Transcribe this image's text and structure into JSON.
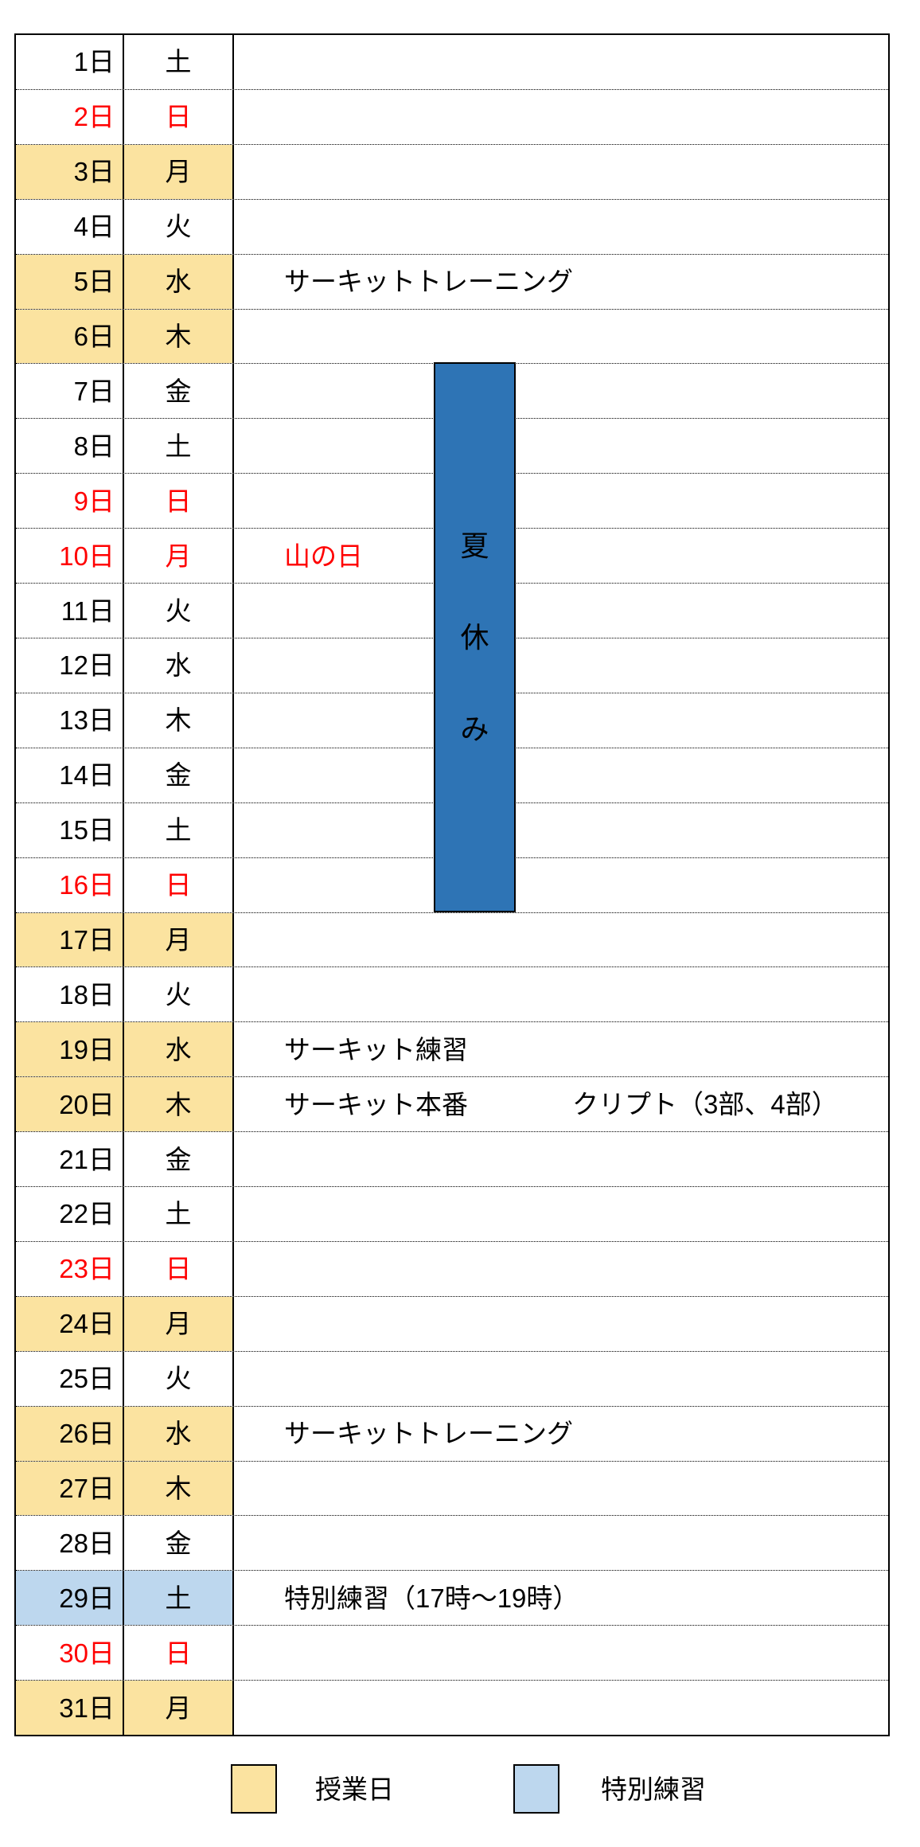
{
  "colors": {
    "class_day": "#FBE3A0",
    "special": "#BDD7EE",
    "banner": "#2E74B5",
    "red": "#FF0000"
  },
  "banner": {
    "chars": [
      "夏",
      "休",
      "み"
    ]
  },
  "legend": {
    "class_day_label": "授業日",
    "special_practice_label": "特別練習"
  },
  "table": {
    "days": [
      {
        "day": "1日",
        "weekday": "土",
        "bg": "none",
        "red": false,
        "event": "",
        "event2": "",
        "event_red": false
      },
      {
        "day": "2日",
        "weekday": "日",
        "bg": "none",
        "red": true,
        "event": "",
        "event2": "",
        "event_red": false
      },
      {
        "day": "3日",
        "weekday": "月",
        "bg": "class",
        "red": false,
        "event": "",
        "event2": "",
        "event_red": false
      },
      {
        "day": "4日",
        "weekday": "火",
        "bg": "none",
        "red": false,
        "event": "",
        "event2": "",
        "event_red": false
      },
      {
        "day": "5日",
        "weekday": "水",
        "bg": "class",
        "red": false,
        "event": "サーキットトレーニング",
        "event2": "",
        "event_red": false
      },
      {
        "day": "6日",
        "weekday": "木",
        "bg": "class",
        "red": false,
        "event": "",
        "event2": "",
        "event_red": false
      },
      {
        "day": "7日",
        "weekday": "金",
        "bg": "none",
        "red": false,
        "event": "",
        "event2": "",
        "event_red": false
      },
      {
        "day": "8日",
        "weekday": "土",
        "bg": "none",
        "red": false,
        "event": "",
        "event2": "",
        "event_red": false
      },
      {
        "day": "9日",
        "weekday": "日",
        "bg": "none",
        "red": true,
        "event": "",
        "event2": "",
        "event_red": false
      },
      {
        "day": "10日",
        "weekday": "月",
        "bg": "none",
        "red": true,
        "event": "山の日",
        "event2": "",
        "event_red": true
      },
      {
        "day": "11日",
        "weekday": "火",
        "bg": "none",
        "red": false,
        "event": "",
        "event2": "",
        "event_red": false
      },
      {
        "day": "12日",
        "weekday": "水",
        "bg": "none",
        "red": false,
        "event": "",
        "event2": "",
        "event_red": false
      },
      {
        "day": "13日",
        "weekday": "木",
        "bg": "none",
        "red": false,
        "event": "",
        "event2": "",
        "event_red": false
      },
      {
        "day": "14日",
        "weekday": "金",
        "bg": "none",
        "red": false,
        "event": "",
        "event2": "",
        "event_red": false
      },
      {
        "day": "15日",
        "weekday": "土",
        "bg": "none",
        "red": false,
        "event": "",
        "event2": "",
        "event_red": false
      },
      {
        "day": "16日",
        "weekday": "日",
        "bg": "none",
        "red": true,
        "event": "",
        "event2": "",
        "event_red": false
      },
      {
        "day": "17日",
        "weekday": "月",
        "bg": "class",
        "red": false,
        "event": "",
        "event2": "",
        "event_red": false
      },
      {
        "day": "18日",
        "weekday": "火",
        "bg": "none",
        "red": false,
        "event": "",
        "event2": "",
        "event_red": false
      },
      {
        "day": "19日",
        "weekday": "水",
        "bg": "class",
        "red": false,
        "event": "サーキット練習",
        "event2": "",
        "event_red": false
      },
      {
        "day": "20日",
        "weekday": "木",
        "bg": "class",
        "red": false,
        "event": "サーキット本番",
        "event2": "クリプト（3部、4部）",
        "event_red": false
      },
      {
        "day": "21日",
        "weekday": "金",
        "bg": "none",
        "red": false,
        "event": "",
        "event2": "",
        "event_red": false
      },
      {
        "day": "22日",
        "weekday": "土",
        "bg": "none",
        "red": false,
        "event": "",
        "event2": "",
        "event_red": false
      },
      {
        "day": "23日",
        "weekday": "日",
        "bg": "none",
        "red": true,
        "event": "",
        "event2": "",
        "event_red": false
      },
      {
        "day": "24日",
        "weekday": "月",
        "bg": "class",
        "red": false,
        "event": "",
        "event2": "",
        "event_red": false
      },
      {
        "day": "25日",
        "weekday": "火",
        "bg": "none",
        "red": false,
        "event": "",
        "event2": "",
        "event_red": false
      },
      {
        "day": "26日",
        "weekday": "水",
        "bg": "class",
        "red": false,
        "event": "サーキットトレーニング",
        "event2": "",
        "event_red": false
      },
      {
        "day": "27日",
        "weekday": "木",
        "bg": "class",
        "red": false,
        "event": "",
        "event2": "",
        "event_red": false
      },
      {
        "day": "28日",
        "weekday": "金",
        "bg": "none",
        "red": false,
        "event": "",
        "event2": "",
        "event_red": false
      },
      {
        "day": "29日",
        "weekday": "土",
        "bg": "special",
        "red": false,
        "event": "特別練習（17時～19時）",
        "event2": "",
        "event_red": false
      },
      {
        "day": "30日",
        "weekday": "日",
        "bg": "none",
        "red": true,
        "event": "",
        "event2": "",
        "event_red": false
      },
      {
        "day": "31日",
        "weekday": "月",
        "bg": "class",
        "red": false,
        "event": "",
        "event2": "",
        "event_red": false
      }
    ]
  }
}
